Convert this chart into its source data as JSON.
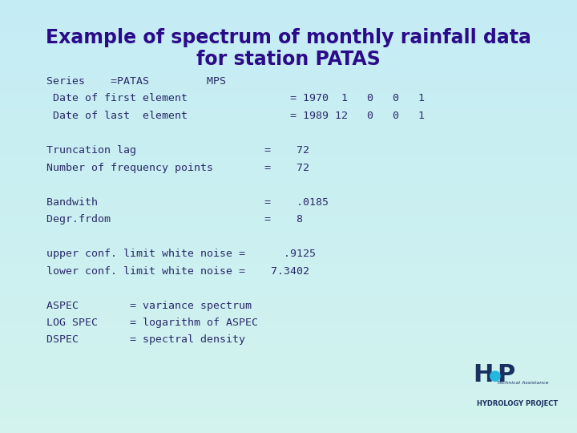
{
  "title_line1": "Example of spectrum of monthly rainfall data",
  "title_line2": "for station PATAS",
  "title_color": "#2B0B8A",
  "title_fontsize": 17,
  "bg_color": "#cceef5",
  "text_color": "#2a2a6a",
  "text_fontsize": 9.5,
  "body_text": [
    "Series    =PATAS         MPS",
    " Date of first element                = 1970  1   0   0   1",
    " Date of last  element                = 1989 12   0   0   1",
    "",
    "Truncation lag                    =    72",
    "Number of frequency points        =    72",
    "",
    "Bandwith                          =    .0185",
    "Degr.frdom                        =    8",
    "",
    "upper conf. limit white noise =      .9125",
    "lower conf. limit white noise =    7.3402",
    "",
    "ASPEC        = variance spectrum",
    "LOG SPEC     = logarithm of ASPEC",
    "DSPEC        = spectral density"
  ]
}
